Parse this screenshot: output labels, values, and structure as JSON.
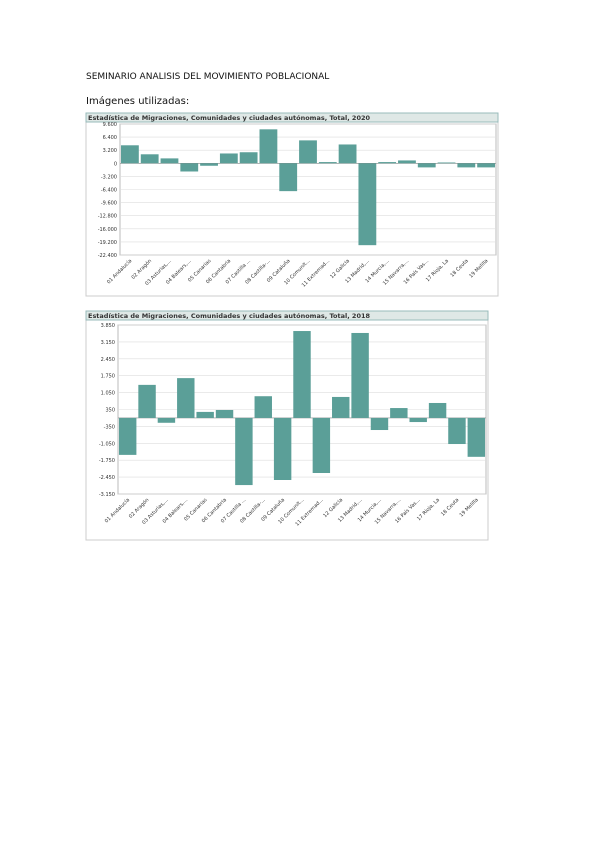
{
  "document": {
    "title": "SEMINARIO ANALISIS DEL MOVIMIENTO POBLACIONAL",
    "subtitle": "Imágenes utilizadas:"
  },
  "chart_data": [
    {
      "type": "bar",
      "title": "Estadística de Migraciones, Comunidades y ciudades autónomas, Total, 2020",
      "categories": [
        "01 Andalucía",
        "02 Aragón",
        "03 Asturias,...",
        "04 Balears,...",
        "05 Canarias",
        "06 Cantabria",
        "07 Castilla ...",
        "08 Castilla-...",
        "09 Cataluña",
        "10 Comunit...",
        "11 Extremad...",
        "12 Galicia",
        "13 Madrid,...",
        "14 Murcia,...",
        "15 Navarra,...",
        "16 País Vas...",
        "17 Rioja, La",
        "18 Ceuta",
        "19 Melilla"
      ],
      "values": [
        4400,
        2200,
        1200,
        -2000,
        -600,
        2400,
        2700,
        8300,
        -6800,
        5600,
        300,
        4600,
        -20000,
        300,
        700,
        -1000,
        200,
        -1000,
        -1000
      ],
      "color": "#5b9f98",
      "grid": true,
      "ylim": [
        -22400,
        9600
      ],
      "yticks": [
        {
          "value": -22400,
          "label": "-22.400"
        },
        {
          "value": -19200,
          "label": "-19.200"
        },
        {
          "value": -16000,
          "label": "-16.000"
        },
        {
          "value": -12800,
          "label": "-12.800"
        },
        {
          "value": -9600,
          "label": "-9.600"
        },
        {
          "value": -6400,
          "label": "-6.400"
        },
        {
          "value": -3200,
          "label": "-3.200"
        },
        0,
        {
          "value": 3200,
          "label": "3.200"
        },
        {
          "value": 6400,
          "label": "6.400"
        },
        {
          "value": 9600,
          "label": "9.600"
        }
      ]
    },
    {
      "type": "bar",
      "title": "Estadística de Migraciones, Comunidades y ciudades autónomas, Total, 2018",
      "categories": [
        "01 Andalucía",
        "02 Aragón",
        "03 Asturias,...",
        "04 Balears,...",
        "05 Canarias",
        "06 Cantabria",
        "07 Castilla ...",
        "08 Castilla-...",
        "09 Cataluña",
        "10 Comunit...",
        "11 Extremad...",
        "12 Galicia",
        "13 Madrid,...",
        "14 Murcia,...",
        "15 Navarra,...",
        "16 País Vas...",
        "17 Rioja, La",
        "18 Ceuta",
        "19 Melilla"
      ],
      "values": [
        -1530,
        1370,
        -200,
        1650,
        250,
        330,
        -2780,
        900,
        -2570,
        3600,
        -2280,
        870,
        3520,
        -500,
        410,
        -170,
        620,
        -1080,
        -1610
      ],
      "color": "#5b9f98",
      "grid": true,
      "ylim": [
        -3150,
        3850
      ],
      "yticks": [
        {
          "value": -3150,
          "label": "-3.150"
        },
        {
          "value": -2450,
          "label": "-2.450"
        },
        {
          "value": -1750,
          "label": "-1.750"
        },
        {
          "value": -1050,
          "label": "-1.050"
        },
        {
          "value": -350,
          "label": "-350"
        },
        350,
        {
          "value": 1050,
          "label": "1.050"
        },
        {
          "value": 1750,
          "label": "1.750"
        },
        {
          "value": 2450,
          "label": "2.450"
        },
        {
          "value": 3150,
          "label": "3.150"
        },
        {
          "value": 3850,
          "label": "3.850"
        }
      ]
    }
  ]
}
